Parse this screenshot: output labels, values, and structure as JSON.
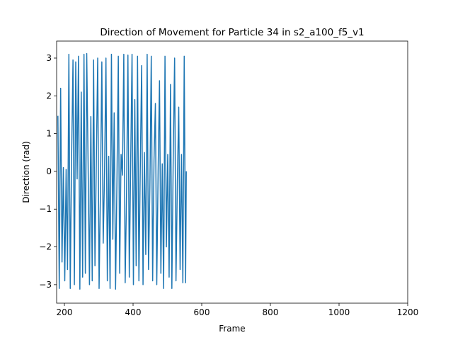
{
  "chart_data": {
    "type": "line",
    "title": "Direction of Movement for Particle 34 in s2_a100_f5_v1",
    "x_label": "Frame",
    "y_label": "Direction (rad)",
    "color": "#1f77b4",
    "x": [
      181,
      185,
      189,
      193,
      197,
      201,
      205,
      209,
      213,
      217,
      221,
      225,
      229,
      233,
      237,
      241,
      245,
      249,
      253,
      257,
      261,
      265,
      269,
      273,
      277,
      281,
      285,
      289,
      293,
      297,
      301,
      305,
      309,
      313,
      317,
      321,
      325,
      329,
      333,
      337,
      341,
      345,
      349,
      353,
      357,
      361,
      365,
      369,
      373,
      377,
      381,
      385,
      389,
      393,
      397,
      401,
      405,
      409,
      413,
      417,
      421,
      425,
      429,
      433,
      437,
      441,
      445,
      449,
      453,
      457,
      461,
      465,
      469,
      473,
      477,
      481,
      485,
      489,
      493,
      497,
      501,
      505,
      509,
      513,
      517,
      521,
      525,
      529,
      533,
      537,
      541,
      545,
      549,
      553,
      555
    ],
    "values": [
      1.47,
      -3.1,
      2.2,
      -2.4,
      0.1,
      -2.9,
      0.05,
      -2.6,
      3.1,
      -3.1,
      0.4,
      2.95,
      -3.0,
      2.9,
      -0.2,
      3.05,
      -3.12,
      2.1,
      -2.8,
      3.1,
      -2.7,
      3.12,
      0.2,
      -3.0,
      1.45,
      -2.9,
      2.95,
      -2.5,
      0.3,
      3.0,
      -3.1,
      -0.5,
      2.9,
      -1.9,
      0.0,
      3.0,
      -2.9,
      0.4,
      -3.1,
      3.1,
      -1.8,
      1.55,
      -3.12,
      -0.3,
      3.05,
      -2.7,
      0.45,
      -0.1,
      3.1,
      -2.95,
      -0.6,
      3.08,
      -2.8,
      0.2,
      3.1,
      -3.0,
      1.9,
      -2.5,
      3.05,
      -2.9,
      0.1,
      2.8,
      -3.0,
      0.5,
      -2.2,
      3.1,
      -2.6,
      -0.4,
      3.05,
      -2.9,
      0.3,
      1.8,
      -3.0,
      0.0,
      2.4,
      -2.7,
      0.2,
      -3.1,
      3.05,
      -2.0,
      0.45,
      -2.8,
      2.3,
      -3.1,
      0.4,
      3.0,
      -2.9,
      -0.3,
      1.7,
      -2.6,
      0.45,
      -2.95,
      3.05,
      -2.95,
      0.0
    ],
    "xlim": [
      177.3,
      1200
    ],
    "xticks": [
      200,
      400,
      600,
      800,
      1000,
      1200
    ],
    "ylim": [
      -3.49,
      3.45
    ],
    "yticks": [
      {
        "value": -3,
        "label": "−3"
      },
      {
        "value": -2,
        "label": "−2"
      },
      {
        "value": -1,
        "label": "−1"
      },
      0,
      1,
      2,
      3
    ]
  }
}
